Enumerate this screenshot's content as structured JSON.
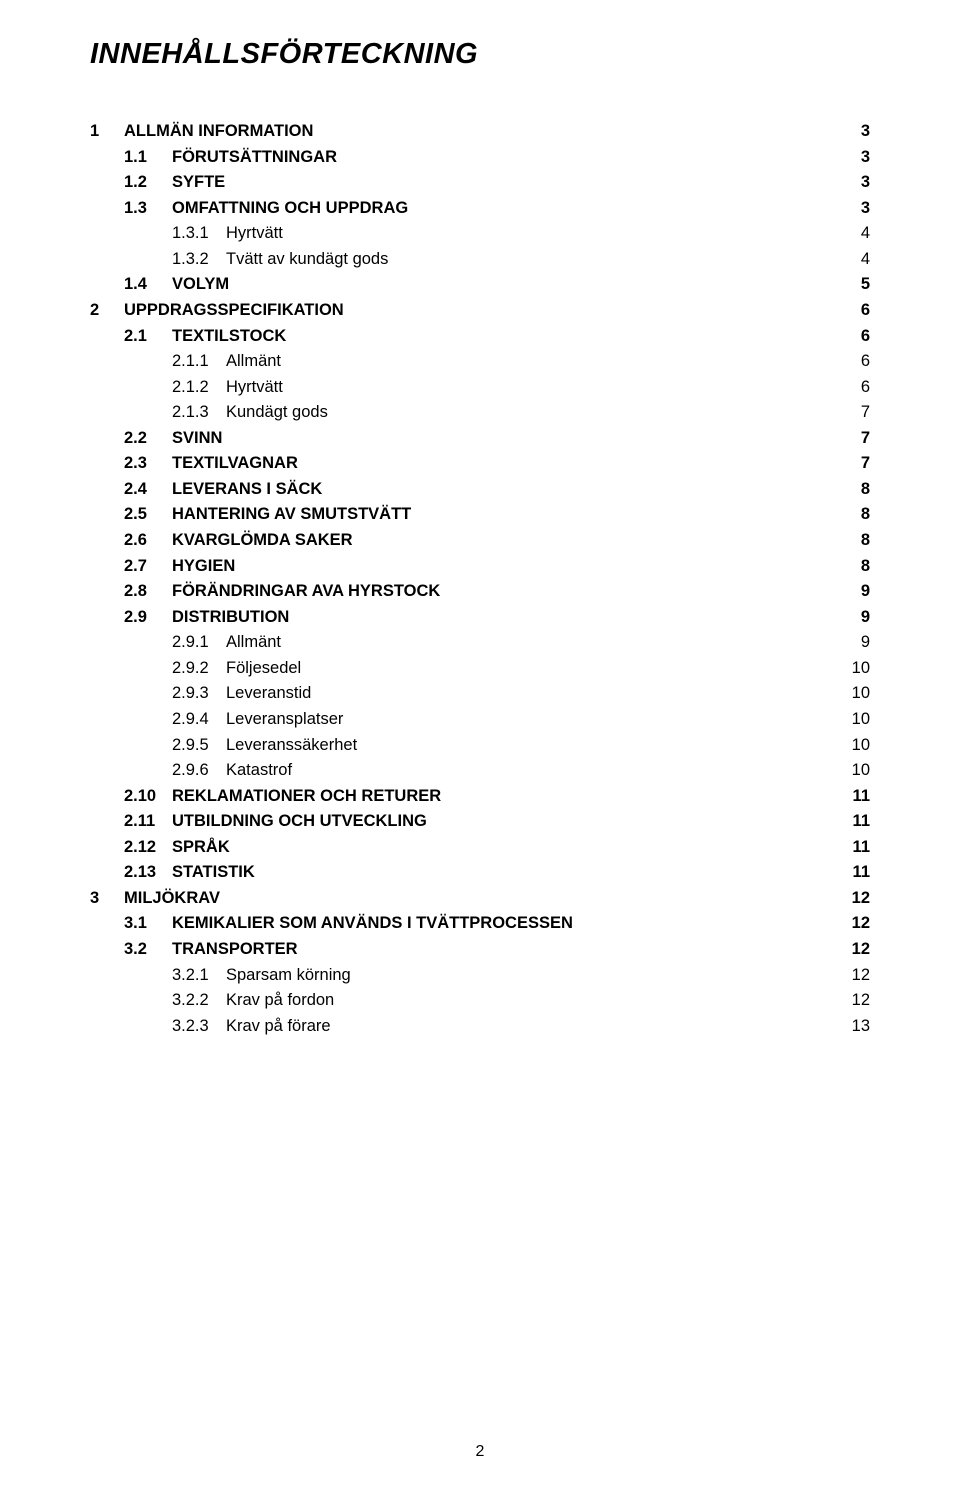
{
  "title": "INNEHÅLLSFÖRTECKNING",
  "page_number": "2",
  "toc": [
    {
      "level": 1,
      "num": "1",
      "label": "ALLMÄN INFORMATION",
      "page": "3"
    },
    {
      "level": 2,
      "num": "1.1",
      "label": "FÖRUTSÄTTNINGAR",
      "page": "3"
    },
    {
      "level": 2,
      "num": "1.2",
      "label": "SYFTE",
      "page": "3"
    },
    {
      "level": 2,
      "num": "1.3",
      "label": "OMFATTNING OCH UPPDRAG",
      "page": "3"
    },
    {
      "level": 3,
      "num": "1.3.1",
      "label": "Hyrtvätt",
      "page": "4"
    },
    {
      "level": 3,
      "num": "1.3.2",
      "label": "Tvätt av kundägt gods",
      "page": "4"
    },
    {
      "level": 2,
      "num": "1.4",
      "label": "VOLYM",
      "page": "5"
    },
    {
      "level": 1,
      "num": "2",
      "label": "UPPDRAGSSPECIFIKATION",
      "page": "6"
    },
    {
      "level": 2,
      "num": "2.1",
      "label": "TEXTILSTOCK",
      "page": "6"
    },
    {
      "level": 3,
      "num": "2.1.1",
      "label": "Allmänt",
      "page": "6"
    },
    {
      "level": 3,
      "num": "2.1.2",
      "label": "Hyrtvätt",
      "page": "6"
    },
    {
      "level": 3,
      "num": "2.1.3",
      "label": "Kundägt gods",
      "page": "7"
    },
    {
      "level": 2,
      "num": "2.2",
      "label": "SVINN",
      "page": "7"
    },
    {
      "level": 2,
      "num": "2.3",
      "label": "TEXTILVAGNAR",
      "page": "7"
    },
    {
      "level": 2,
      "num": "2.4",
      "label": "LEVERANS I SÄCK",
      "page": "8"
    },
    {
      "level": 2,
      "num": "2.5",
      "label": "HANTERING AV SMUTSTVÄTT",
      "page": "8"
    },
    {
      "level": 2,
      "num": "2.6",
      "label": "KVARGLÖMDA SAKER",
      "page": "8"
    },
    {
      "level": 2,
      "num": "2.7",
      "label": "HYGIEN",
      "page": "8"
    },
    {
      "level": 2,
      "num": "2.8",
      "label": "FÖRÄNDRINGAR AVA HYRSTOCK",
      "page": "9"
    },
    {
      "level": 2,
      "num": "2.9",
      "label": "DISTRIBUTION",
      "page": "9"
    },
    {
      "level": 3,
      "num": "2.9.1",
      "label": "Allmänt",
      "page": "9"
    },
    {
      "level": 3,
      "num": "2.9.2",
      "label": "Följesedel",
      "page": "10"
    },
    {
      "level": 3,
      "num": "2.9.3",
      "label": "Leveranstid",
      "page": "10"
    },
    {
      "level": 3,
      "num": "2.9.4",
      "label": "Leveransplatser",
      "page": "10"
    },
    {
      "level": 3,
      "num": "2.9.5",
      "label": "Leveranssäkerhet",
      "page": "10"
    },
    {
      "level": 3,
      "num": "2.9.6",
      "label": "Katastrof",
      "page": "10"
    },
    {
      "level": 2,
      "num": "2.10",
      "label": "REKLAMATIONER OCH RETURER",
      "page": "11"
    },
    {
      "level": 2,
      "num": "2.11",
      "label": "UTBILDNING OCH UTVECKLING",
      "page": "11"
    },
    {
      "level": 2,
      "num": "2.12",
      "label": "SPRÅK",
      "page": "11"
    },
    {
      "level": 2,
      "num": "2.13",
      "label": "STATISTIK",
      "page": "11"
    },
    {
      "level": 1,
      "num": "3",
      "label": "MILJÖKRAV",
      "page": "12"
    },
    {
      "level": 2,
      "num": "3.1",
      "label": "KEMIKALIER SOM ANVÄNDS I TVÄTTPROCESSEN",
      "page": "12"
    },
    {
      "level": 2,
      "num": "3.2",
      "label": "TRANSPORTER",
      "page": "12"
    },
    {
      "level": 3,
      "num": "3.2.1",
      "label": "Sparsam körning",
      "page": "12"
    },
    {
      "level": 3,
      "num": "3.2.2",
      "label": "Krav på fordon",
      "page": "12"
    },
    {
      "level": 3,
      "num": "3.2.3",
      "label": "Krav på förare",
      "page": "13"
    }
  ]
}
